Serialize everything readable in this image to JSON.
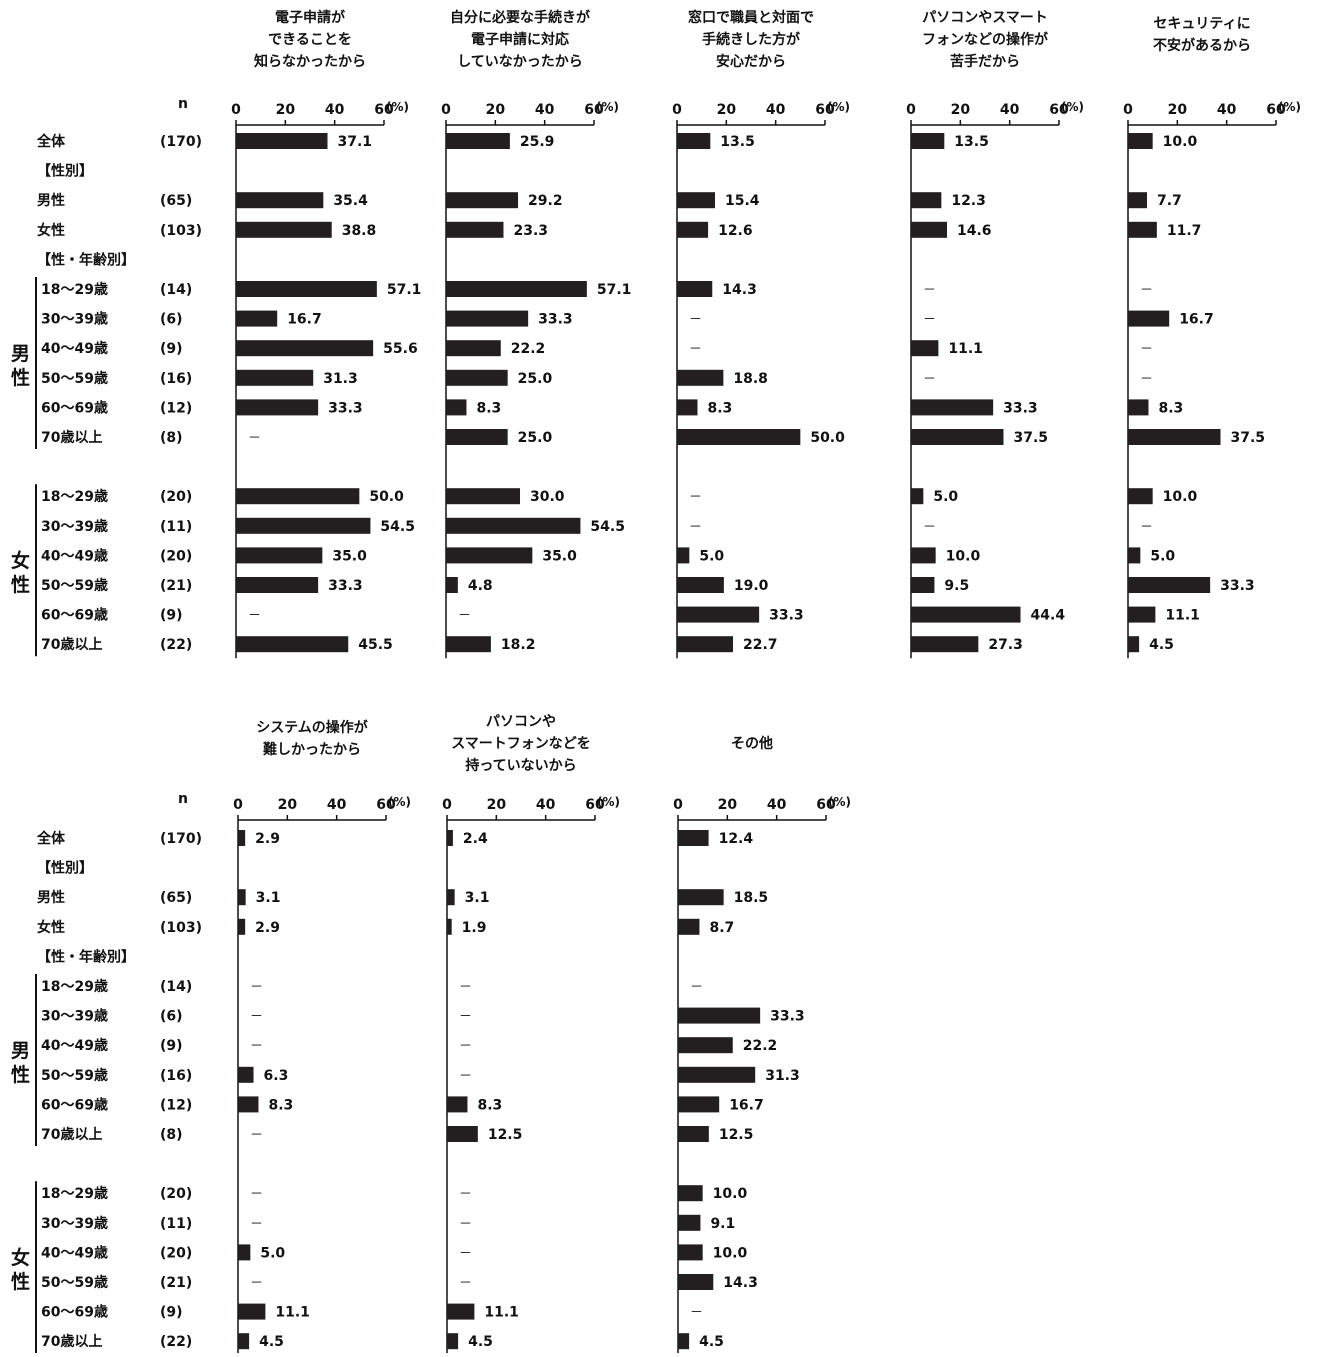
{
  "labels": {
    "n_header": "n",
    "percent_unit": "(%)",
    "missing": "－",
    "male_side": [
      "男",
      "性"
    ],
    "female_side": [
      "女",
      "性"
    ]
  },
  "rows": [
    {
      "label": "全体",
      "n": "(170)",
      "kind": "data"
    },
    {
      "label": "【性別】",
      "n": "",
      "kind": "header"
    },
    {
      "label": "男性",
      "n": "(65)",
      "kind": "data"
    },
    {
      "label": "女性",
      "n": "(103)",
      "kind": "data"
    },
    {
      "label": "【性・年齢別】",
      "n": "",
      "kind": "header"
    },
    {
      "label": "18～29歳",
      "n": "(14)",
      "kind": "data",
      "group": "male"
    },
    {
      "label": "30～39歳",
      "n": "(6)",
      "kind": "data",
      "group": "male"
    },
    {
      "label": "40～49歳",
      "n": "(9)",
      "kind": "data",
      "group": "male"
    },
    {
      "label": "50～59歳",
      "n": "(16)",
      "kind": "data",
      "group": "male"
    },
    {
      "label": "60～69歳",
      "n": "(12)",
      "kind": "data",
      "group": "male"
    },
    {
      "label": "70歳以上",
      "n": "(8)",
      "kind": "data",
      "group": "male"
    },
    {
      "label": "",
      "n": "",
      "kind": "spacer"
    },
    {
      "label": "18～29歳",
      "n": "(20)",
      "kind": "data",
      "group": "female"
    },
    {
      "label": "30～39歳",
      "n": "(11)",
      "kind": "data",
      "group": "female"
    },
    {
      "label": "40～49歳",
      "n": "(20)",
      "kind": "data",
      "group": "female"
    },
    {
      "label": "50～59歳",
      "n": "(21)",
      "kind": "data",
      "group": "female"
    },
    {
      "label": "60～69歳",
      "n": "(9)",
      "kind": "data",
      "group": "female"
    },
    {
      "label": "70歳以上",
      "n": "(22)",
      "kind": "data",
      "group": "female"
    }
  ],
  "chart_data": {
    "type": "bar",
    "orientation": "horizontal",
    "xlim": [
      0,
      60
    ],
    "xticks": [
      0,
      20,
      40,
      60
    ],
    "unit": "(%)",
    "bar_color": "#231f20",
    "categories": [
      "全体",
      "男性",
      "女性",
      "男性 18～29歳",
      "男性 30～39歳",
      "男性 40～49歳",
      "男性 50～59歳",
      "男性 60～69歳",
      "男性 70歳以上",
      "女性 18～29歳",
      "女性 30～39歳",
      "女性 40～49歳",
      "女性 50～59歳",
      "女性 60～69歳",
      "女性 70歳以上"
    ],
    "panels": [
      {
        "title": [
          "電子申請が",
          "できることを",
          "知らなかったから"
        ],
        "values": [
          37.1,
          35.4,
          38.8,
          57.1,
          16.7,
          55.6,
          31.3,
          33.3,
          null,
          50.0,
          54.5,
          35.0,
          33.3,
          null,
          45.5
        ]
      },
      {
        "title": [
          "自分に必要な手続きが",
          "電子申請に対応",
          "していなかったから"
        ],
        "values": [
          25.9,
          29.2,
          23.3,
          57.1,
          33.3,
          22.2,
          25.0,
          8.3,
          25.0,
          30.0,
          54.5,
          35.0,
          4.8,
          null,
          18.2
        ]
      },
      {
        "title": [
          "窓口で職員と対面で",
          "手続きした方が",
          "安心だから"
        ],
        "values": [
          13.5,
          15.4,
          12.6,
          14.3,
          null,
          null,
          18.8,
          8.3,
          50.0,
          null,
          null,
          5.0,
          19.0,
          33.3,
          22.7
        ]
      },
      {
        "title": [
          "パソコンやスマート",
          "フォンなどの操作が",
          "苦手だから"
        ],
        "values": [
          13.5,
          12.3,
          14.6,
          null,
          null,
          11.1,
          null,
          33.3,
          37.5,
          5.0,
          null,
          10.0,
          9.5,
          44.4,
          27.3
        ]
      },
      {
        "title": [
          "セキュリティに",
          "不安があるから"
        ],
        "values": [
          10.0,
          7.7,
          11.7,
          null,
          16.7,
          null,
          null,
          8.3,
          37.5,
          10.0,
          null,
          5.0,
          33.3,
          11.1,
          4.5
        ]
      },
      {
        "title": [
          "システムの操作が",
          "難しかったから"
        ],
        "values": [
          2.9,
          3.1,
          2.9,
          null,
          null,
          null,
          6.3,
          8.3,
          null,
          null,
          null,
          5.0,
          null,
          11.1,
          4.5
        ]
      },
      {
        "title": [
          "パソコンや",
          "スマートフォンなどを",
          "持っていないから"
        ],
        "values": [
          2.4,
          3.1,
          1.9,
          null,
          null,
          null,
          null,
          8.3,
          12.5,
          null,
          null,
          null,
          null,
          11.1,
          4.5
        ]
      },
      {
        "title": [
          "その他"
        ],
        "values": [
          12.4,
          18.5,
          8.7,
          null,
          33.3,
          22.2,
          31.3,
          16.7,
          12.5,
          10.0,
          9.1,
          10.0,
          14.3,
          null,
          4.5
        ]
      }
    ]
  }
}
